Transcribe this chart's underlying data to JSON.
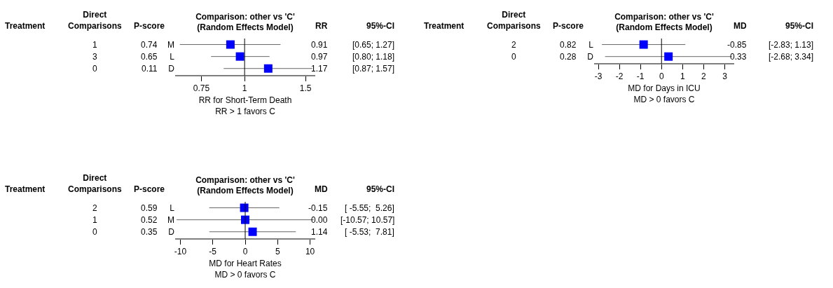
{
  "chart_data": [
    {
      "type": "scatter",
      "orientation": "horizontal",
      "title": "Comparison: other vs 'C'\n(Random Effects Model)",
      "ylabel": "Treatment",
      "xlabel": "RR for Short-Term Death\nRR > 1 favors C",
      "categories": [
        "M",
        "L",
        "D"
      ],
      "values": [
        0.91,
        0.97,
        1.17
      ],
      "errors": [
        [
          0.65,
          1.27
        ],
        [
          0.8,
          1.18
        ],
        [
          0.87,
          1.57
        ]
      ],
      "color": "#0000ff",
      "marker": "square",
      "log": "x",
      "xlim": [
        0.63,
        1.6
      ],
      "xticks": [
        0.75,
        1,
        1.5
      ],
      "ref_lines": [
        {
          "axis": "x",
          "value": 1
        }
      ],
      "grid": false,
      "legend": false,
      "annotations": [
        "Direct\nComparisons",
        "P-score",
        "RR",
        "95%-CI",
        "1",
        "0.74",
        "0.91",
        "[0.65; 1.27]",
        "3",
        "0.65",
        "0.97",
        "[0.80; 1.18]",
        "0",
        "0.11",
        "1.17",
        "[0.87; 1.57]"
      ]
    },
    {
      "type": "scatter",
      "orientation": "horizontal",
      "title": "Comparison: other vs 'C'\n(Random Effects Model)",
      "ylabel": "Treatment",
      "xlabel": "MD for Days in ICU\nMD > 0 favors C",
      "categories": [
        "L",
        "D"
      ],
      "values": [
        -0.85,
        0.33
      ],
      "errors": [
        [
          -2.83,
          1.13
        ],
        [
          -2.68,
          3.34
        ]
      ],
      "color": "#0000ff",
      "marker": "square",
      "xlim": [
        -3.2,
        3.45
      ],
      "xticks": [
        -3,
        -2,
        -1,
        0,
        1,
        2,
        3
      ],
      "ref_lines": [
        {
          "axis": "x",
          "value": 0
        }
      ],
      "grid": false,
      "legend": false,
      "annotations": [
        "Direct\nComparisons",
        "P-score",
        "MD",
        "95%-CI",
        "2",
        "0.82",
        "-0.85",
        "[-2.83; 1.13]",
        "0",
        "0.28",
        "0.33",
        "[-2.68; 3.34]"
      ]
    },
    {
      "type": "scatter",
      "orientation": "horizontal",
      "title": "Comparison: other vs 'C'\n(Random Effects Model)",
      "ylabel": "Treatment",
      "xlabel": "MD for Heart Rates\nMD > 0 favors C",
      "categories": [
        "L",
        "M",
        "D"
      ],
      "values": [
        -0.15,
        0.0,
        1.14
      ],
      "errors": [
        [
          -5.55,
          5.26
        ],
        [
          -10.57,
          10.57
        ],
        [
          -5.53,
          7.81
        ]
      ],
      "color": "#0000ff",
      "marker": "square",
      "xlim": [
        -10.8,
        10.8
      ],
      "xticks": [
        -10,
        -5,
        0,
        5,
        10
      ],
      "ref_lines": [
        {
          "axis": "x",
          "value": 0
        }
      ],
      "grid": false,
      "legend": false,
      "annotations": [
        "Direct\nComparisons",
        "P-score",
        "MD",
        "95%-CI",
        "2",
        "0.59",
        "-0.15",
        "[ -5.55;  5.26]",
        "1",
        "0.52",
        "0.00",
        "[-10.57; 10.57]",
        "0",
        "0.35",
        "1.14",
        "[ -5.53;  7.81]"
      ]
    }
  ]
}
